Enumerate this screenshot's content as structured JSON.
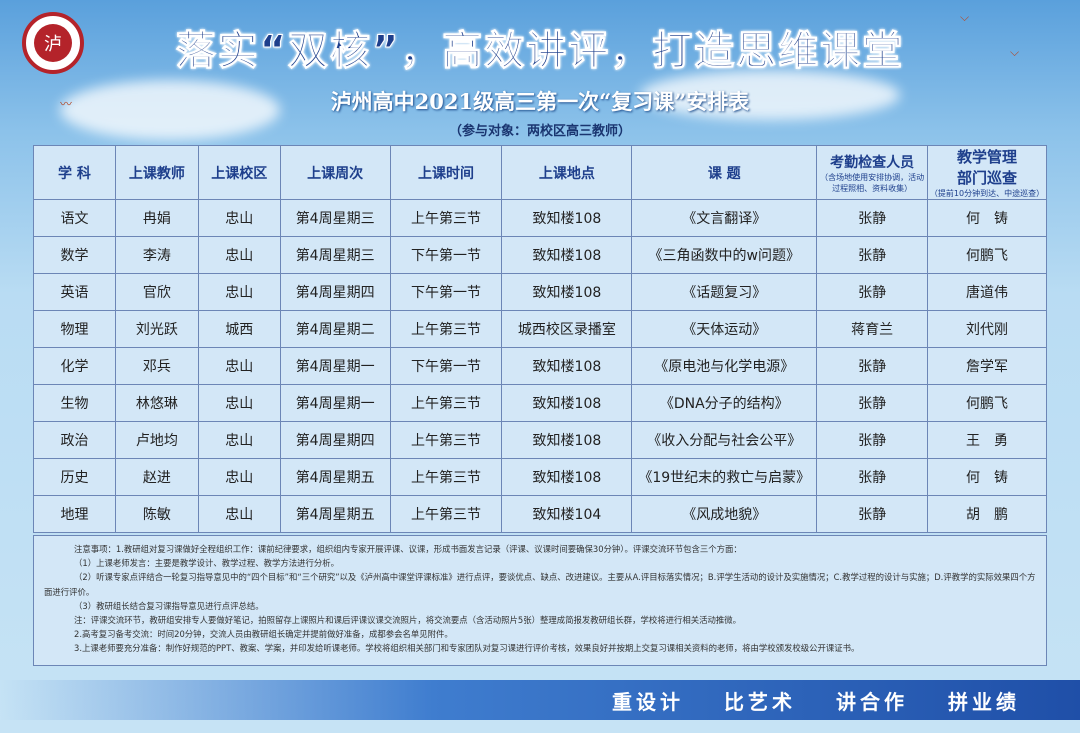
{
  "header": {
    "title": "落实“双核”，高效讲评，打造思维课堂",
    "subtitle": "泸州高中2021级高三第一次“复习课”安排表",
    "audience": "（参与对象：两校区高三教师）",
    "logo_text": "泸州高中"
  },
  "table": {
    "columns": [
      "学 科",
      "上课教师",
      "上课校区",
      "上课周次",
      "上课时间",
      "上课地点",
      "课 题",
      "考勤检查人员",
      "教学管理部门巡查"
    ],
    "column_notes": {
      "attendance": "（含场地使用安排协调，活动过程照相、资料收集）",
      "patrol": "（提前10分钟到达、中途巡查）"
    },
    "column_titles": {
      "patrol_line1": "教学管理",
      "patrol_line2": "部门巡查"
    },
    "rows": [
      [
        "语文",
        "冉娟",
        "忠山",
        "第4周星期三",
        "上午第三节",
        "致知楼108",
        "《文言翻译》",
        "张静",
        "何　铸"
      ],
      [
        "数学",
        "李涛",
        "忠山",
        "第4周星期三",
        "下午第一节",
        "致知楼108",
        "《三角函数中的w问题》",
        "张静",
        "何鹏飞"
      ],
      [
        "英语",
        "官欣",
        "忠山",
        "第4周星期四",
        "下午第一节",
        "致知楼108",
        "《话题复习》",
        "张静",
        "唐道伟"
      ],
      [
        "物理",
        "刘光跃",
        "城西",
        "第4周星期二",
        "上午第三节",
        "城西校区录播室",
        "《天体运动》",
        "蒋育兰",
        "刘代刚"
      ],
      [
        "化学",
        "邓兵",
        "忠山",
        "第4周星期一",
        "下午第一节",
        "致知楼108",
        "《原电池与化学电源》",
        "张静",
        "詹学军"
      ],
      [
        "生物",
        "林悠琳",
        "忠山",
        "第4周星期一",
        "上午第三节",
        "致知楼108",
        "《DNA分子的结构》",
        "张静",
        "何鹏飞"
      ],
      [
        "政治",
        "卢地均",
        "忠山",
        "第4周星期四",
        "上午第三节",
        "致知楼108",
        "《收入分配与社会公平》",
        "张静",
        "王　勇"
      ],
      [
        "历史",
        "赵进",
        "忠山",
        "第4周星期五",
        "上午第三节",
        "致知楼108",
        "《19世纪末的救亡与启蒙》",
        "张静",
        "何　铸"
      ],
      [
        "地理",
        "陈敏",
        "忠山",
        "第4周星期五",
        "上午第三节",
        "致知楼104",
        "《风成地貌》",
        "张静",
        "胡　鹏"
      ]
    ]
  },
  "notes": [
    "注意事项：1.教研组对复习课做好全程组织工作：课前纪律要求，组织组内专家开展评课、议课，形成书面发言记录（评课、议课时间要确保30分钟）。评课交流环节包含三个方面：",
    "（1）上课老师发言：主要是教学设计、教学过程、教学方法进行分析。",
    "（2）听课专家点评结合一轮复习指导意见中的“四个目标”和“三个研究”以及《泸州高中课堂评课标准》进行点评，要谈优点、缺点、改进建议。主要从A.评目标落实情况；B.评学生活动的设计及实施情况；C.教学过程的设计与实施；D.评教学的实际效果四个方面进行评价。",
    "（3）教研组长结合复习课指导意见进行点评总结。",
    "注：评课交流环节，教研组安排专人要做好笔记，拍照留存上课照片和课后评课议课交流照片，将交流要点（含活动照片5张）整理成简报发教研组长群，学校将进行相关活动推微。",
    "2.高考复习备考交流：时间20分钟，交流人员由教研组长确定并提前做好准备，成都参会名单见附件。",
    "3.上课老师要充分准备：制作好规范的PPT、教案、学案，并印发给听课老师。学校将组织相关部门和专家团队对复习课进行评价考核，效果良好并按期上交复习课相关资料的老师，将由学校颁发校级公开课证书。"
  ],
  "footer": {
    "slogans": [
      "重设计",
      "比艺术",
      "讲合作",
      "拼业绩"
    ]
  },
  "colors": {
    "title": "#1e3f8c",
    "background": "#c6e3f5",
    "banner": "#1f4fa8",
    "logo": "#b4232a"
  }
}
